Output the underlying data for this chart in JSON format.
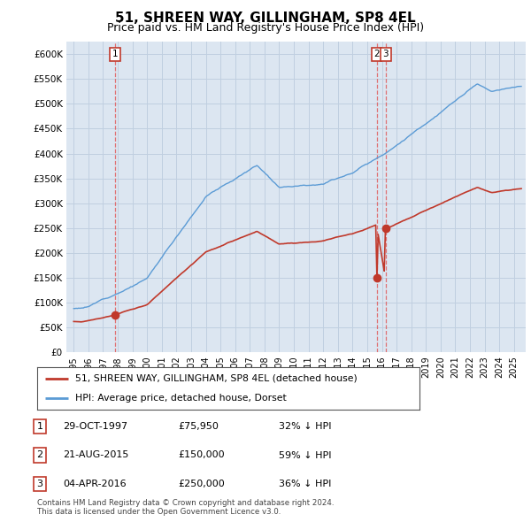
{
  "title": "51, SHREEN WAY, GILLINGHAM, SP8 4EL",
  "subtitle": "Price paid vs. HM Land Registry's House Price Index (HPI)",
  "title_fontsize": 11,
  "subtitle_fontsize": 9,
  "ylabel_ticks": [
    "£0",
    "£50K",
    "£100K",
    "£150K",
    "£200K",
    "£250K",
    "£300K",
    "£350K",
    "£400K",
    "£450K",
    "£500K",
    "£550K",
    "£600K"
  ],
  "ytick_vals": [
    0,
    50000,
    100000,
    150000,
    200000,
    250000,
    300000,
    350000,
    400000,
    450000,
    500000,
    550000,
    600000
  ],
  "ylim": [
    0,
    625000
  ],
  "xlim_start": 1994.5,
  "xlim_end": 2025.8,
  "hpi_color": "#5b9bd5",
  "sold_color": "#c0392b",
  "plot_bg_color": "#dce6f1",
  "vline_color": "#e05c5c",
  "sale_points": [
    {
      "year": 1997.83,
      "price": 75950,
      "label": "1",
      "vline": 1997.83
    },
    {
      "year": 2015.64,
      "price": 150000,
      "label": "2",
      "vline": 2015.64
    },
    {
      "year": 2016.25,
      "price": 250000,
      "label": "3",
      "vline": 2016.25
    }
  ],
  "legend_entries": [
    {
      "label": "51, SHREEN WAY, GILLINGHAM, SP8 4EL (detached house)",
      "color": "#c0392b"
    },
    {
      "label": "HPI: Average price, detached house, Dorset",
      "color": "#5b9bd5"
    }
  ],
  "table_rows": [
    {
      "num": "1",
      "date": "29-OCT-1997",
      "price": "£75,950",
      "hpi": "32% ↓ HPI"
    },
    {
      "num": "2",
      "date": "21-AUG-2015",
      "price": "£150,000",
      "hpi": "59% ↓ HPI"
    },
    {
      "num": "3",
      "date": "04-APR-2016",
      "price": "£250,000",
      "hpi": "36% ↓ HPI"
    }
  ],
  "footer": "Contains HM Land Registry data © Crown copyright and database right 2024.\nThis data is licensed under the Open Government Licence v3.0.",
  "background_color": "#ffffff",
  "grid_color": "#c0cfe0"
}
